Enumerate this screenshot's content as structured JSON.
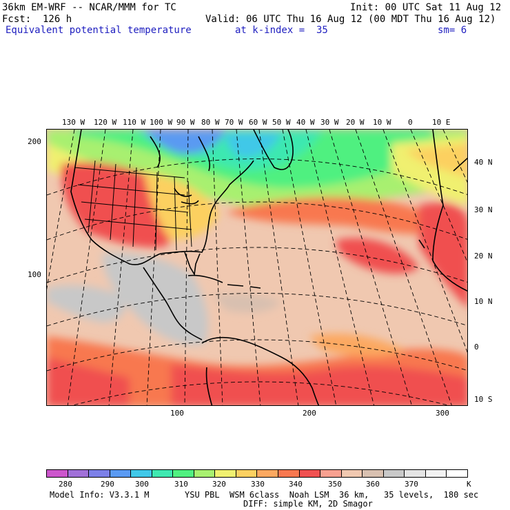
{
  "header": {
    "model_line": "36km EM-WRF -- NCAR/MMM for TC",
    "forecast_line": "Fcst:  126 h",
    "init_line": "Init: 00 UTC Sat 11 Aug 12",
    "valid_line": "Valid: 06 UTC Thu 16 Aug 12 (00 MDT Thu 16 Aug 12)",
    "field_name": "Equivalent potential temperature",
    "level": "at k-index =  35",
    "smoothing": "sm= 6"
  },
  "map": {
    "top_lon_labels": [
      "130 W",
      "120 W",
      "110 W",
      "100 W",
      "90 W",
      "80 W",
      "70 W",
      "60 W",
      "50 W",
      "40 W",
      "30 W",
      "20 W",
      "10 W",
      "0",
      "10 E"
    ],
    "right_lat_labels": [
      "40 N",
      "30 N",
      "20 N",
      "10 N",
      "0",
      "10 S"
    ],
    "left_grid_labels": [
      "200",
      "100"
    ],
    "bottom_grid_labels": [
      "100",
      "200",
      "300"
    ]
  },
  "colorbar": {
    "labels": [
      "280",
      "290",
      "300",
      "310",
      "320",
      "330",
      "340",
      "350",
      "360",
      "370"
    ],
    "unit": "K",
    "colors": [
      "#cc55cc",
      "#a070d8",
      "#7c80e8",
      "#5a9af2",
      "#40c8e8",
      "#3ee8b0",
      "#50f080",
      "#a8f070",
      "#f0f070",
      "#fcd060",
      "#fca860",
      "#f87850",
      "#f05050",
      "#f8a090",
      "#f0c8b0",
      "#d8c0b0",
      "#c8c8c8",
      "#e4e4e4",
      "#f2f2f2",
      "#ffffff"
    ]
  },
  "footer": {
    "model_info": "Model Info: V3.3.1 M",
    "physics": "YSU PBL  WSM 6class  Noah LSM  36 km,   35 levels,  180 sec",
    "diffusion": "DIFF: simple KM, 2D Smagor"
  }
}
